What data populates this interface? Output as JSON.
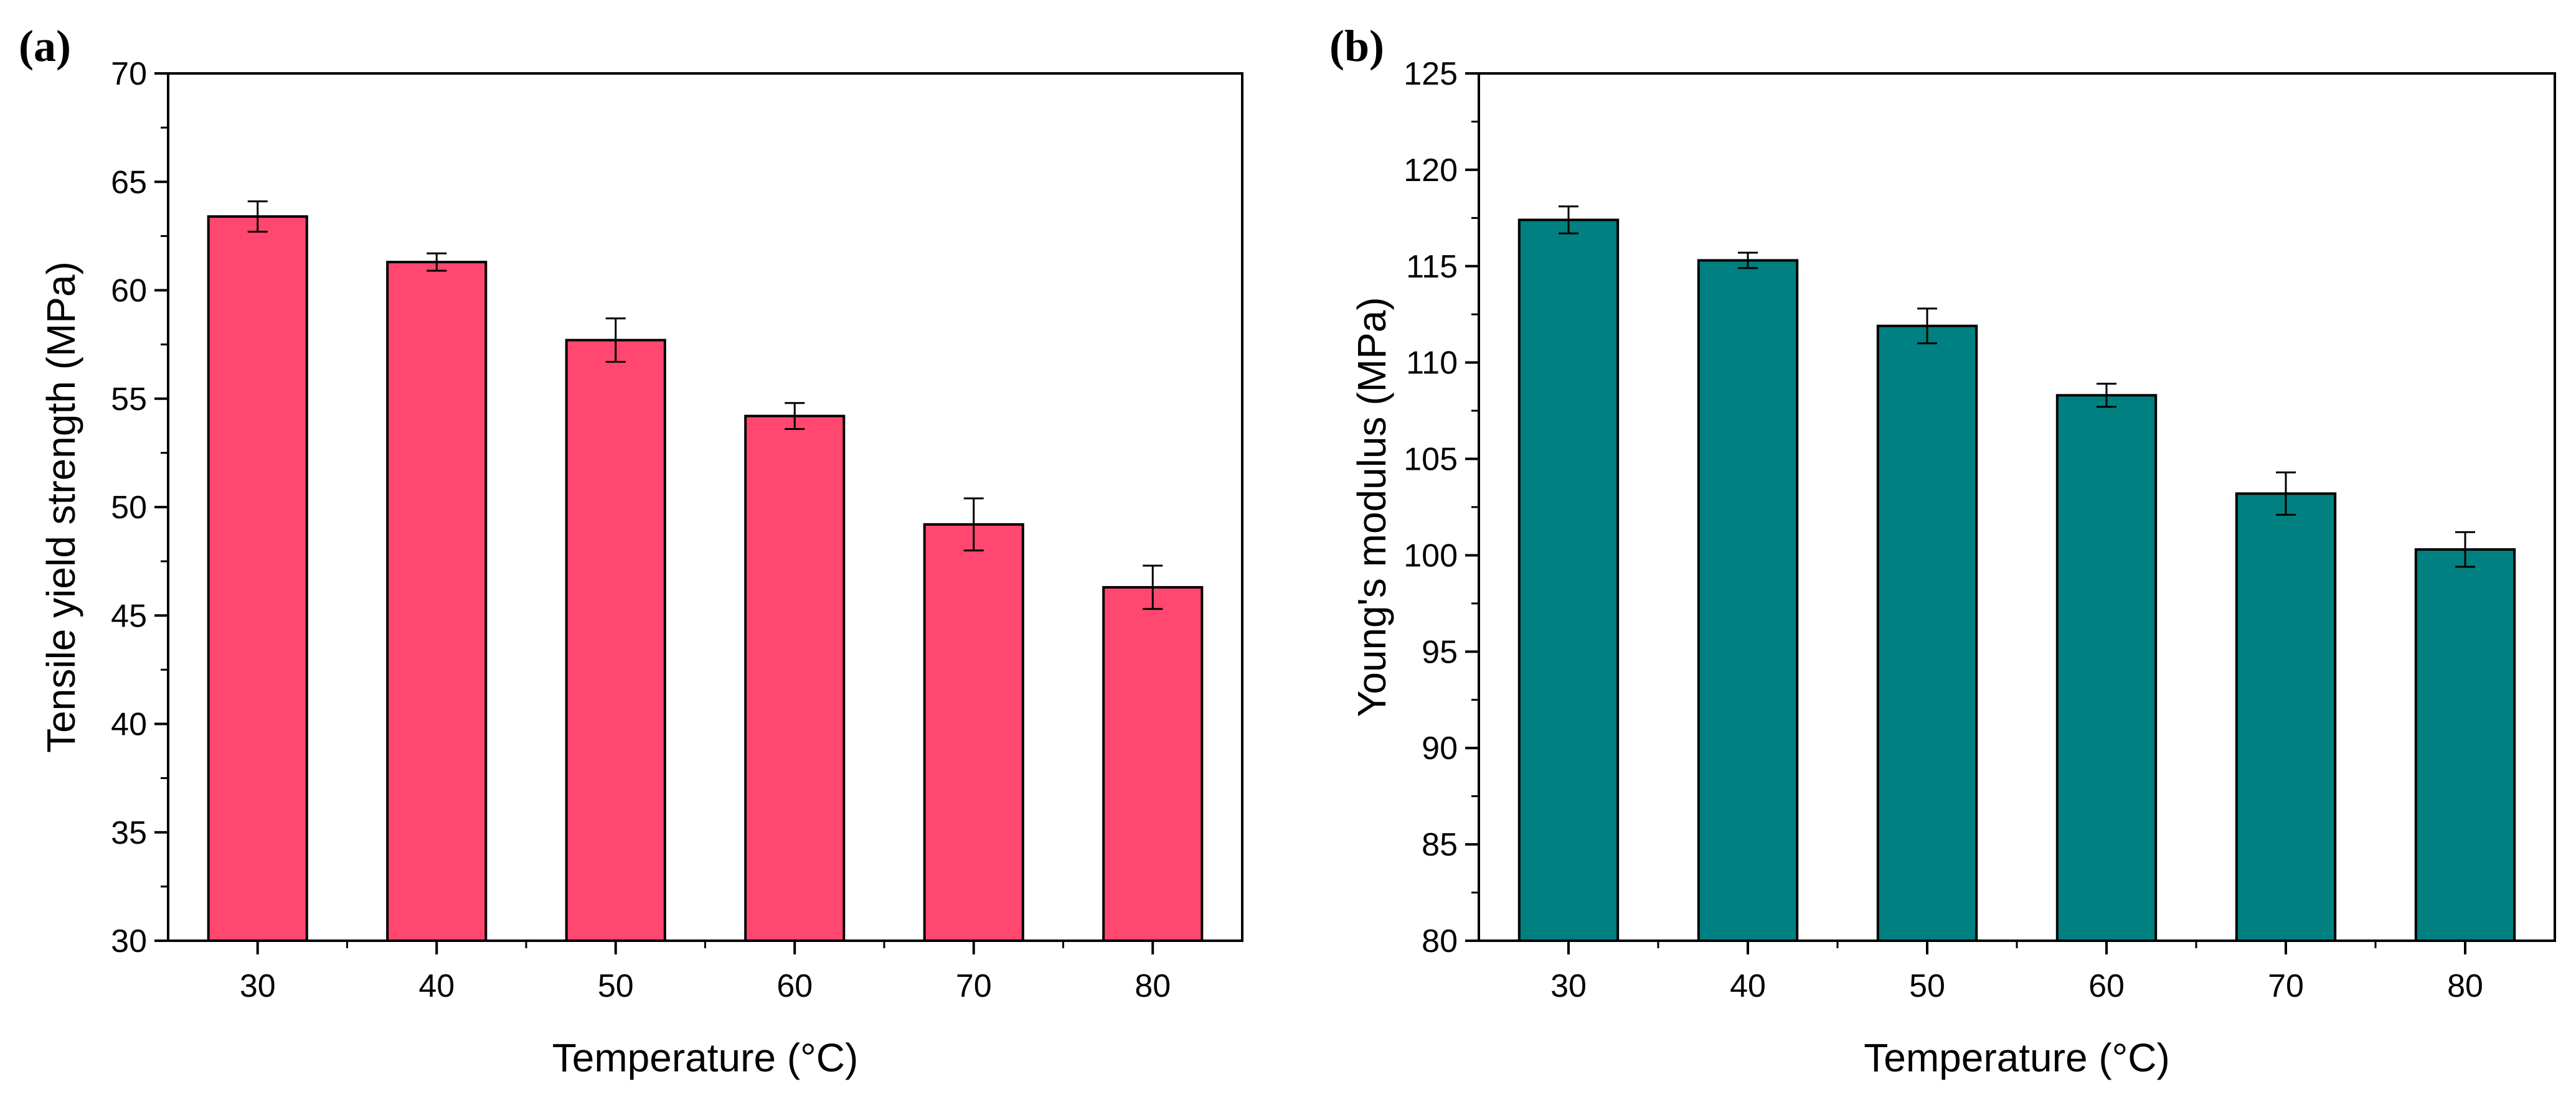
{
  "chart_data": [
    {
      "type": "bar",
      "panel_label": "(a)",
      "categories": [
        "30",
        "40",
        "50",
        "60",
        "70",
        "80"
      ],
      "values": [
        63.4,
        61.3,
        57.7,
        54.2,
        49.2,
        46.3
      ],
      "errors": [
        0.7,
        0.4,
        1.0,
        0.6,
        1.2,
        1.0
      ],
      "xlabel": "Temperature (°C)",
      "ylabel": "Tensile yield strength (MPa)",
      "ylim": [
        30,
        70
      ],
      "yticks": [
        30,
        35,
        40,
        45,
        50,
        55,
        60,
        65,
        70
      ],
      "bar_color": "#FF476F",
      "grid": false
    },
    {
      "type": "bar",
      "panel_label": "(b)",
      "categories": [
        "30",
        "40",
        "50",
        "60",
        "70",
        "80"
      ],
      "values": [
        117.4,
        115.3,
        111.9,
        108.3,
        103.2,
        100.3
      ],
      "errors": [
        0.7,
        0.4,
        0.9,
        0.6,
        1.1,
        0.9
      ],
      "xlabel": "Temperature (°C)",
      "ylabel": "Young's modulus (MPa)",
      "ylim": [
        80,
        125
      ],
      "yticks": [
        80,
        85,
        90,
        95,
        100,
        105,
        110,
        115,
        120,
        125
      ],
      "bar_color": "#008080",
      "grid": false
    }
  ]
}
